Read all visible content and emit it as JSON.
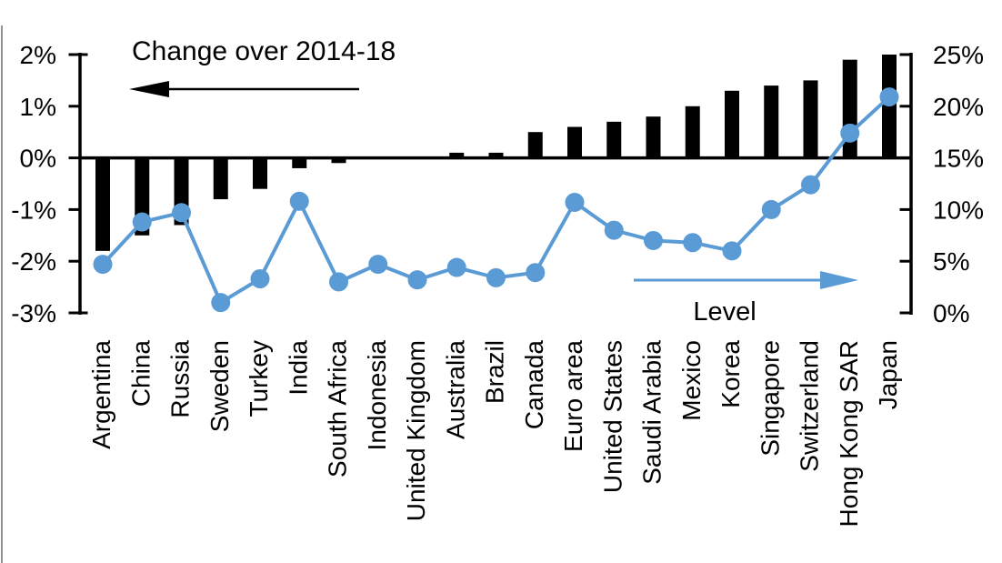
{
  "chart_data": {
    "type": "combo-bar-line",
    "title": "",
    "categories": [
      "Argentina",
      "China",
      "Russia",
      "Sweden",
      "Turkey",
      "India",
      "South Africa",
      "Indonesia",
      "United Kingdom",
      "Australia",
      "Brazil",
      "Canada",
      "Euro area",
      "United States",
      "Saudi Arabia",
      "Mexico",
      "Korea",
      "Singapore",
      "Switzerland",
      "Hong Kong SAR",
      "Japan"
    ],
    "series": [
      {
        "name": "Change over 2014-18",
        "type": "bar",
        "axis": "left",
        "unit": "%",
        "values": [
          -1.8,
          -1.5,
          -1.3,
          -0.8,
          -0.6,
          -0.2,
          -0.1,
          0,
          0,
          0.1,
          0.1,
          0.5,
          0.6,
          0.7,
          0.8,
          1.0,
          1.3,
          1.4,
          1.5,
          1.9,
          2.0
        ]
      },
      {
        "name": "Level",
        "type": "line",
        "axis": "right",
        "unit": "%",
        "values": [
          4.7,
          8.8,
          9.7,
          1.0,
          3.3,
          10.8,
          3.0,
          4.7,
          3.2,
          4.4,
          3.4,
          3.9,
          10.7,
          8.0,
          7.0,
          6.8,
          6.0,
          10.0,
          12.4,
          17.4,
          20.9
        ]
      }
    ],
    "left_axis": {
      "range": [
        -3,
        2
      ],
      "tick_values": [
        2,
        1,
        0,
        -1,
        -2,
        -3
      ],
      "tick_labels": [
        "2%",
        "1%",
        "0%",
        "-1%",
        "-2%",
        "-3%"
      ]
    },
    "right_axis": {
      "range": [
        0,
        25
      ],
      "tick_values": [
        25,
        20,
        15,
        10,
        5,
        0
      ],
      "tick_labels": [
        "25%",
        "20%",
        "15%",
        "10%",
        "5%",
        "0%"
      ]
    },
    "annotations": {
      "change_label": "Change over 2014-18",
      "change_arrow_direction": "left",
      "level_label": "Level",
      "level_arrow_direction": "right"
    },
    "colors": {
      "bar": "#000000",
      "line": "#5b9bd5",
      "axis": "#000000",
      "text": "#000000",
      "border": "#6e6e6e"
    },
    "layout_hints": {
      "grid": "off",
      "zero_line_left_axis_aligns_right_axis_at": 15,
      "x_labels_rotated_degrees": 90
    }
  }
}
